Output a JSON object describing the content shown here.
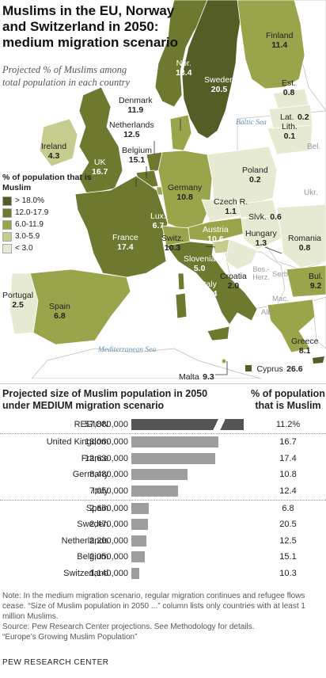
{
  "title": "Muslims in the EU, Norway and Switzerland in 2050: medium migration scenario",
  "subtitle": "Projected % of Muslims among total population in each country",
  "legend": {
    "title": "% of population that is Muslim",
    "items": [
      {
        "label": "> 18.0%",
        "color": "#545d26"
      },
      {
        "label": "12.0-17.9",
        "color": "#6e782f"
      },
      {
        "label": "6.0-11.9",
        "color": "#9aa44a"
      },
      {
        "label": "3.0-5.9",
        "color": "#c5cc8d"
      },
      {
        "label": "< 3.0",
        "color": "#e6ead2"
      }
    ]
  },
  "seas": {
    "baltic": "Baltic Sea",
    "mediterranean": "Mediterranean Sea"
  },
  "countries": {
    "finland": {
      "name": "Finland",
      "value": "11.4"
    },
    "norway": {
      "name": "Nor.",
      "value": "13.4"
    },
    "sweden": {
      "name": "Sweden",
      "value": "20.5"
    },
    "estonia": {
      "name": "Est.",
      "value": "0.8"
    },
    "latvia": {
      "name": "Lat.",
      "value": "0.2"
    },
    "lithuania": {
      "name": "Lith.",
      "value": "0.1"
    },
    "denmark": {
      "name": "Denmark",
      "value": "11.9"
    },
    "netherlands": {
      "name": "Netherlands",
      "value": "12.5"
    },
    "ireland": {
      "name": "Ireland",
      "value": "4.3"
    },
    "uk": {
      "name": "UK",
      "value": "16.7"
    },
    "belgium": {
      "name": "Belgium",
      "value": "15.1"
    },
    "germany": {
      "name": "Germany",
      "value": "10.8"
    },
    "poland": {
      "name": "Poland",
      "value": "0.2"
    },
    "czech": {
      "name": "Czech R.",
      "value": "1.1"
    },
    "slovakia": {
      "name": "Slvk.",
      "value": "0.6"
    },
    "luxembourg": {
      "name": "Lux.",
      "value": "6.7"
    },
    "france": {
      "name": "France",
      "value": "17.4"
    },
    "switzerland": {
      "name": "Switz.",
      "value": "10.3"
    },
    "austria": {
      "name": "Austria",
      "value": "10.6"
    },
    "hungary": {
      "name": "Hungary",
      "value": "1.3"
    },
    "romania": {
      "name": "Romania",
      "value": "0.8"
    },
    "slovenia": {
      "name": "Slovenia",
      "value": "5.0"
    },
    "croatia": {
      "name": "Croatia",
      "value": "2.0"
    },
    "italy": {
      "name": "Italy",
      "value": "12.4"
    },
    "bulgaria": {
      "name": "Bul.",
      "value": "9.2"
    },
    "portugal": {
      "name": "Portugal",
      "value": "2.5"
    },
    "spain": {
      "name": "Spain",
      "value": "6.8"
    },
    "greece": {
      "name": "Greece",
      "value": "8.1"
    },
    "malta": {
      "name": "Malta",
      "value": "9.3"
    },
    "cyprus": {
      "name": "Cyprus",
      "value": "26.6"
    }
  },
  "non_eu": {
    "belarus": "Bel.",
    "ukraine": "Ukr.",
    "serbia": "Serb.",
    "bosnia": "Bos.-Herz.",
    "macedonia": "Mac.",
    "albania": "Alb."
  },
  "table": {
    "heading": "Projected size of Muslim population in 2050 under MEDIUM migration scenario",
    "pct_heading": "% of population that is Muslim",
    "rows": [
      {
        "country": "REGION",
        "population": "57,880,000",
        "value": 57880000,
        "pct": "11.2%",
        "region": true
      },
      {
        "country": "United Kingdom",
        "population": "13,060,000",
        "value": 13060000,
        "pct": "16.7"
      },
      {
        "country": "France",
        "population": "12,630,000",
        "value": 12630000,
        "pct": "17.4"
      },
      {
        "country": "Germany",
        "population": "8,480,000",
        "value": 8480000,
        "pct": "10.8"
      },
      {
        "country": "Italy",
        "population": "7,050,000",
        "value": 7050000,
        "pct": "12.4"
      },
      {
        "country": "Spain",
        "population": "2,660,000",
        "value": 2660000,
        "pct": "6.8"
      },
      {
        "country": "Sweden",
        "population": "2,470,000",
        "value": 2470000,
        "pct": "20.5"
      },
      {
        "country": "Netherlands",
        "population": "2,200,000",
        "value": 2200000,
        "pct": "12.5"
      },
      {
        "country": "Belgium",
        "population": "2,050,000",
        "value": 2050000,
        "pct": "15.1"
      },
      {
        "country": "Switzerland",
        "population": "1,140,000",
        "value": 1140000,
        "pct": "10.3"
      }
    ]
  },
  "note": "Note: In the medium migration scenario, regular migration continues and refugee flows cease. “Size of Muslim population in 2050 ...” column lists only countries with at least 1 million Muslims.",
  "source": "Source: Pew Research Center projections. See Methodology for details.",
  "report": "“Europe’s Growing Muslim Population”",
  "brand": "PEW RESEARCH CENTER"
}
